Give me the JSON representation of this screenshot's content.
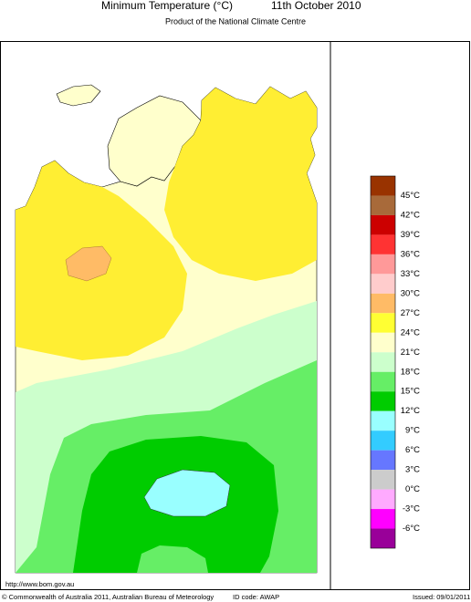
{
  "header": {
    "title": "Minimum Temperature (°C)",
    "date": "11th October 2010",
    "subtitle": "Product of the National Climate Centre"
  },
  "legend": {
    "labels": [
      "45°C",
      "42°C",
      "39°C",
      "36°C",
      "33°C",
      "30°C",
      "27°C",
      "24°C",
      "21°C",
      "18°C",
      "15°C",
      "12°C",
      "9°C",
      "6°C",
      "3°C",
      "0°C",
      "-3°C",
      "-6°C"
    ],
    "colors": [
      "#993300",
      "#a86a3a",
      "#cc0000",
      "#ff3333",
      "#ff9999",
      "#ffcccc",
      "#ffbb66",
      "#ffff33",
      "#ffffcc",
      "#ccffcc",
      "#66ee66",
      "#00cc00",
      "#99ffff",
      "#33ccff",
      "#6677ff",
      "#cccccc",
      "#ffaaff",
      "#ff00ff",
      "#990099"
    ]
  },
  "footer": {
    "url": "http://www.bom.gov.au",
    "copyright": "© Commonwealth of Australia 2011, Australian Bureau of Meteorology",
    "id_code": "ID code: AWAP",
    "issued": "Issued: 09/01/2011"
  }
}
